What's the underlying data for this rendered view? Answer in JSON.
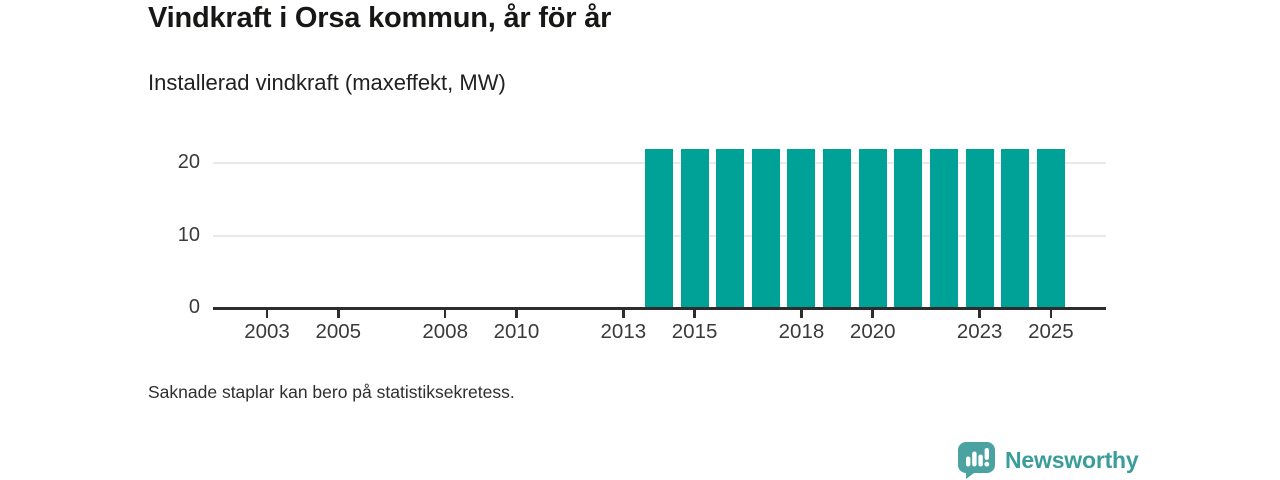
{
  "header": {
    "title": "Vindkraft i Orsa kommun, år för år",
    "subtitle": "Installerad vindkraft (maxeffekt, MW)"
  },
  "chart_data": {
    "type": "bar",
    "title": "Vindkraft i Orsa kommun, år för år",
    "subtitle": "Installerad vindkraft (maxeffekt, MW)",
    "unit": "MW",
    "categories": [
      2002,
      2003,
      2004,
      2005,
      2006,
      2007,
      2008,
      2009,
      2010,
      2011,
      2012,
      2013,
      2014,
      2015,
      2016,
      2017,
      2018,
      2019,
      2020,
      2021,
      2022,
      2023,
      2024,
      2025
    ],
    "values": [
      null,
      null,
      null,
      null,
      null,
      null,
      null,
      null,
      null,
      null,
      null,
      null,
      22,
      22,
      22,
      22,
      22,
      22,
      22,
      22,
      22,
      22,
      22,
      22
    ],
    "yticks": [
      0,
      10,
      20
    ],
    "xticks": [
      2003,
      2005,
      2008,
      2010,
      2013,
      2015,
      2018,
      2020,
      2023,
      2025
    ],
    "ylim": [
      0,
      23
    ],
    "grid": true,
    "legend": false,
    "bar_color": "#00a298",
    "missing_note": "Saknade staplar kan bero på statistiksekretess."
  },
  "footer": {
    "note": "Saknade staplar kan bero på statistiksekretess.",
    "brand": "Newsworthy"
  },
  "colors": {
    "bar": "#00a298",
    "logo": "#4aa3a0",
    "axis": "#2d2d2d",
    "gridline": "#e9e9e9",
    "text_dark": "#171715",
    "text_label": "#3a3a3a"
  }
}
